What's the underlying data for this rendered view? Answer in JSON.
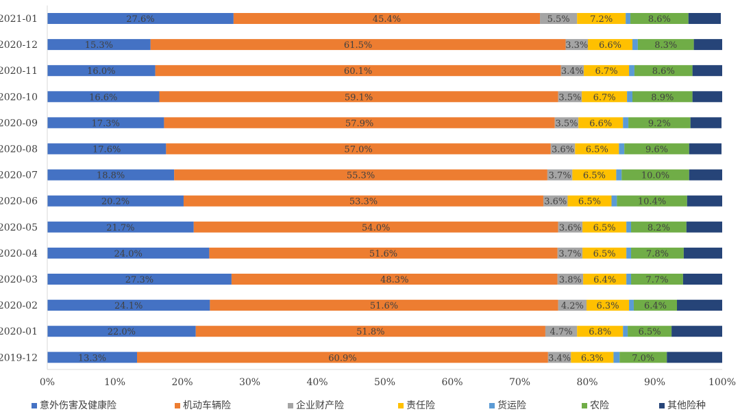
{
  "chart_data": {
    "type": "bar",
    "orientation": "horizontal",
    "stacked": true,
    "percent": true,
    "categories": [
      "2021-01",
      "2020-12",
      "2020-11",
      "2020-10",
      "2020-09",
      "2020-08",
      "2020-07",
      "2020-06",
      "2020-05",
      "2020-04",
      "2020-03",
      "2020-02",
      "2020-01",
      "2019-12"
    ],
    "series": [
      {
        "name": "意外伤害及健康险",
        "color": "#4472C4",
        "values": [
          27.6,
          15.3,
          16.0,
          16.6,
          17.3,
          17.6,
          18.8,
          20.2,
          21.7,
          24.0,
          27.3,
          24.1,
          22.0,
          13.3
        ],
        "labels": [
          "27.6%",
          "15.3%",
          "16.0%",
          "16.6%",
          "17.3%",
          "17.6%",
          "18.8%",
          "20.2%",
          "21.7%",
          "24.0%",
          "27.3%",
          "24.1%",
          "22.0%",
          "13.3%"
        ]
      },
      {
        "name": "机动车辆险",
        "color": "#ED7D31",
        "values": [
          45.4,
          61.5,
          60.1,
          59.1,
          57.9,
          57.0,
          55.3,
          53.3,
          54.0,
          51.6,
          48.3,
          51.6,
          51.8,
          60.9
        ],
        "labels": [
          "45.4%",
          "61.5%",
          "60.1%",
          "59.1%",
          "57.9%",
          "57.0%",
          "55.3%",
          "53.3%",
          "54.0%",
          "51.6%",
          "48.3%",
          "51.6%",
          "51.8%",
          "60.9%"
        ]
      },
      {
        "name": "企业财产险",
        "color": "#A5A5A5",
        "values": [
          5.5,
          3.3,
          3.4,
          3.5,
          3.5,
          3.6,
          3.7,
          3.6,
          3.6,
          3.7,
          3.8,
          4.2,
          4.7,
          3.4
        ],
        "labels": [
          "5.5%",
          "3.3%",
          "3.4%",
          "3.5%",
          "3.5%",
          "3.6%",
          "3.7%",
          "3.6%",
          "3.6%",
          "3.7%",
          "3.8%",
          "4.2%",
          "4.7%",
          "3.4%"
        ]
      },
      {
        "name": "责任险",
        "color": "#FFC000",
        "values": [
          7.2,
          6.6,
          6.7,
          6.7,
          6.6,
          6.5,
          6.5,
          6.5,
          6.5,
          6.5,
          6.4,
          6.3,
          6.8,
          6.3
        ],
        "labels": [
          "7.2%",
          "6.6%",
          "6.7%",
          "6.7%",
          "6.6%",
          "6.5%",
          "6.5%",
          "6.5%",
          "6.5%",
          "6.5%",
          "6.4%",
          "6.3%",
          "6.8%",
          "6.3%"
        ]
      },
      {
        "name": "货运险",
        "color": "#5B9BD5",
        "values": [
          0.7,
          0.8,
          0.8,
          0.8,
          0.8,
          0.8,
          0.8,
          0.8,
          0.7,
          0.7,
          0.7,
          0.7,
          0.7,
          0.9
        ],
        "labels": [
          "",
          "",
          "",
          "",
          "",
          "",
          "",
          "",
          "",
          "",
          "",
          "",
          "",
          ""
        ]
      },
      {
        "name": "农险",
        "color": "#70AD47",
        "values": [
          8.6,
          8.3,
          8.6,
          8.9,
          9.2,
          9.6,
          10.0,
          10.4,
          8.2,
          7.8,
          7.7,
          6.4,
          6.5,
          7.0
        ],
        "labels": [
          "8.6%",
          "8.3%",
          "8.6%",
          "8.9%",
          "9.2%",
          "9.6%",
          "10.0%",
          "10.4%",
          "8.2%",
          "7.8%",
          "7.7%",
          "6.4%",
          "6.5%",
          "7.0%"
        ]
      },
      {
        "name": "其他险种",
        "color": "#264478",
        "values": [
          4.8,
          4.2,
          4.4,
          4.4,
          4.6,
          4.8,
          4.9,
          5.2,
          5.3,
          5.7,
          5.8,
          6.7,
          7.5,
          8.2
        ],
        "labels": [
          "",
          "",
          "",
          "",
          "",
          "",
          "",
          "",
          "",
          "",
          "",
          "",
          "",
          ""
        ]
      }
    ],
    "xlim": [
      0,
      100
    ],
    "xticks": [
      "0%",
      "10%",
      "20%",
      "30%",
      "40%",
      "50%",
      "60%",
      "70%",
      "80%",
      "90%",
      "100%"
    ],
    "legend_position": "bottom",
    "grid": false,
    "title": "",
    "xlabel": "",
    "ylabel": ""
  }
}
